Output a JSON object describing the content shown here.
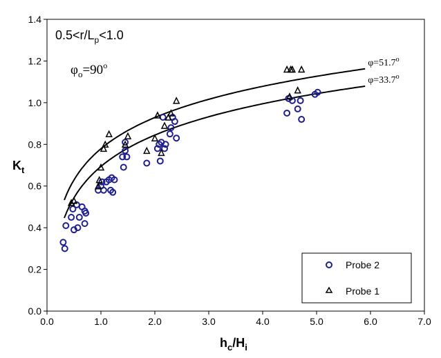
{
  "chart_data": {
    "type": "scatter",
    "xlim": [
      0,
      7
    ],
    "ylim": [
      0,
      1.4
    ],
    "x_ticks": [
      "0.0",
      "1.0",
      "2.0",
      "3.0",
      "4.0",
      "5.0",
      "6.0",
      "7.0"
    ],
    "y_ticks": [
      "0.0",
      "0.2",
      "0.4",
      "0.6",
      "0.8",
      "1.0",
      "1.2",
      "1.4"
    ],
    "xlabel": {
      "main": "h",
      "sub1": "c",
      "mid": "/H",
      "sub2": "i"
    },
    "ylabel": {
      "main": "K",
      "sub": "t"
    },
    "annotations": {
      "range": {
        "pre": "0.5<r/L",
        "sub": "p",
        "post": "<1.0"
      },
      "angle": {
        "pre": "φ",
        "sub": "o",
        "mid": "=90",
        "sup": "o"
      }
    },
    "grid": false,
    "legend_position": "bottom-right",
    "series": [
      {
        "name": "Probe 2",
        "marker": "circle",
        "color": "#1f1f8f",
        "points": [
          [
            0.3,
            0.33
          ],
          [
            0.33,
            0.3
          ],
          [
            0.35,
            0.41
          ],
          [
            0.45,
            0.45
          ],
          [
            0.48,
            0.49
          ],
          [
            0.5,
            0.39
          ],
          [
            0.55,
            0.51
          ],
          [
            0.57,
            0.4
          ],
          [
            0.6,
            0.45
          ],
          [
            0.65,
            0.5
          ],
          [
            0.7,
            0.48
          ],
          [
            0.7,
            0.42
          ],
          [
            0.72,
            0.47
          ],
          [
            0.95,
            0.58
          ],
          [
            1.0,
            0.6
          ],
          [
            1.02,
            0.62
          ],
          [
            1.05,
            0.58
          ],
          [
            1.1,
            0.62
          ],
          [
            1.15,
            0.63
          ],
          [
            1.18,
            0.58
          ],
          [
            1.2,
            0.64
          ],
          [
            1.22,
            0.57
          ],
          [
            1.25,
            0.63
          ],
          [
            1.4,
            0.74
          ],
          [
            1.42,
            0.69
          ],
          [
            1.45,
            0.77
          ],
          [
            1.45,
            0.81
          ],
          [
            1.48,
            0.74
          ],
          [
            1.85,
            0.71
          ],
          [
            2.05,
            0.78
          ],
          [
            2.08,
            0.8
          ],
          [
            2.1,
            0.72
          ],
          [
            2.12,
            0.81
          ],
          [
            2.15,
            0.93
          ],
          [
            2.18,
            0.78
          ],
          [
            2.2,
            0.8
          ],
          [
            2.28,
            0.85
          ],
          [
            2.3,
            0.88
          ],
          [
            2.33,
            0.93
          ],
          [
            2.37,
            0.91
          ],
          [
            2.4,
            0.83
          ],
          [
            4.45,
            0.95
          ],
          [
            4.48,
            1.02
          ],
          [
            4.55,
            1.01
          ],
          [
            4.65,
            0.97
          ],
          [
            4.7,
            1.01
          ],
          [
            4.72,
            0.92
          ],
          [
            4.97,
            1.04
          ],
          [
            5.02,
            1.05
          ]
        ]
      },
      {
        "name": "Probe 1",
        "marker": "triangle",
        "color": "#000000",
        "points": [
          [
            0.45,
            0.52
          ],
          [
            0.5,
            0.53
          ],
          [
            0.95,
            0.6
          ],
          [
            0.97,
            0.63
          ],
          [
            1.0,
            0.69
          ],
          [
            1.05,
            0.78
          ],
          [
            1.08,
            0.8
          ],
          [
            1.15,
            0.85
          ],
          [
            1.45,
            0.8
          ],
          [
            1.5,
            0.84
          ],
          [
            1.85,
            0.77
          ],
          [
            2.0,
            0.83
          ],
          [
            2.05,
            0.94
          ],
          [
            2.12,
            0.76
          ],
          [
            2.18,
            0.89
          ],
          [
            2.25,
            0.93
          ],
          [
            2.3,
            0.95
          ],
          [
            2.4,
            1.01
          ],
          [
            4.45,
            1.16
          ],
          [
            4.5,
            1.03
          ],
          [
            4.52,
            1.16
          ],
          [
            4.55,
            1.16
          ],
          [
            4.65,
            1.06
          ],
          [
            4.72,
            1.16
          ]
        ]
      }
    ],
    "fit_curves": [
      {
        "label": {
          "pre": "φ=51.7",
          "sup": "o"
        },
        "a": 0.779,
        "b": 0.216,
        "x_start": 0.32,
        "x_end": 5.9
      },
      {
        "label": {
          "pre": "φ=33.7",
          "sup": "o"
        },
        "a": 0.694,
        "b": 0.217,
        "x_start": 0.32,
        "x_end": 5.9
      }
    ]
  }
}
